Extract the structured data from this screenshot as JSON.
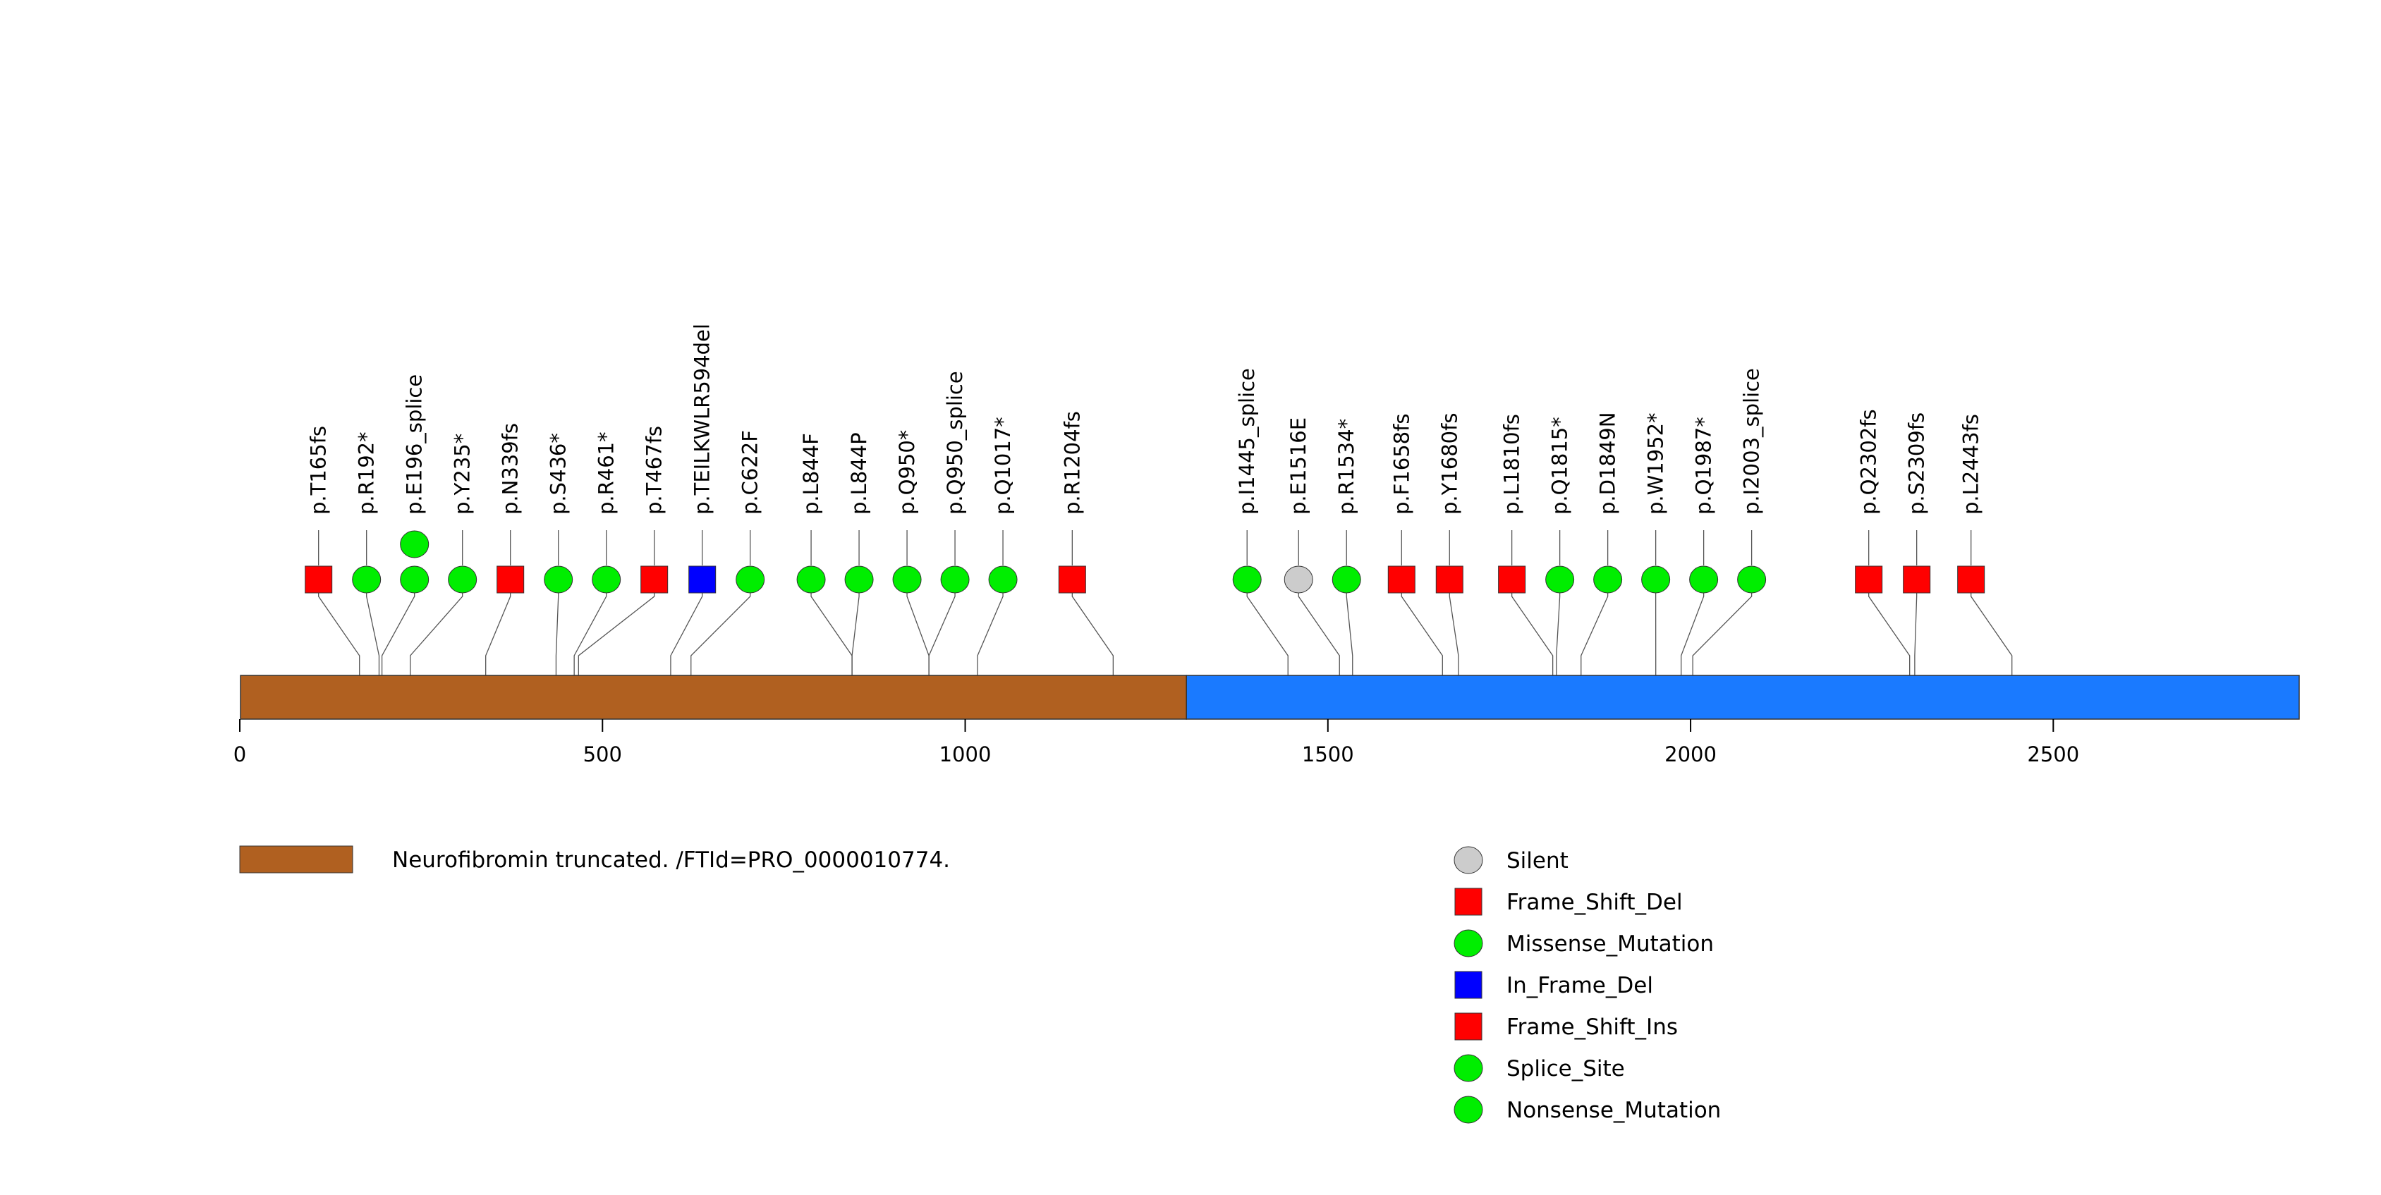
{
  "chart_data": {
    "type": "lollipop",
    "title": "",
    "xlabel": "",
    "ylabel": "",
    "protein_length": 2839,
    "xlim": [
      0,
      2839
    ],
    "x_ticks": [
      0,
      500,
      1000,
      1500,
      2000,
      2500
    ],
    "x_tick_labels": [
      "0",
      "500",
      "1000",
      "1500",
      "2000",
      "2500"
    ],
    "domains": [
      {
        "name": "Neurofibromin truncated. /FTId=PRO_0000010774.",
        "start": 1,
        "end": 1305,
        "color": "#b06020"
      },
      {
        "name": "",
        "start": 1305,
        "end": 2839,
        "color": "#1a7aff"
      }
    ],
    "mutations": [
      {
        "label": "p.T165fs",
        "position": 165,
        "type": "Frame_Shift_Del",
        "stack": 1
      },
      {
        "label": "p.R192*",
        "position": 192,
        "type": "Nonsense_Mutation",
        "stack": 1
      },
      {
        "label": "p.E196_splice",
        "position": 196,
        "type": "Splice_Site",
        "stack": 2
      },
      {
        "label": "p.Y235*",
        "position": 235,
        "type": "Nonsense_Mutation",
        "stack": 1
      },
      {
        "label": "p.N339fs",
        "position": 339,
        "type": "Frame_Shift_Del",
        "stack": 1
      },
      {
        "label": "p.S436*",
        "position": 436,
        "type": "Nonsense_Mutation",
        "stack": 1
      },
      {
        "label": "p.R461*",
        "position": 461,
        "type": "Nonsense_Mutation",
        "stack": 1
      },
      {
        "label": "p.T467fs",
        "position": 467,
        "type": "Frame_Shift_Del",
        "stack": 1
      },
      {
        "label": "p.TEILKWLR594del",
        "position": 594,
        "type": "In_Frame_Del",
        "stack": 1
      },
      {
        "label": "p.C622F",
        "position": 622,
        "type": "Missense_Mutation",
        "stack": 1
      },
      {
        "label": "p.L844F",
        "position": 844,
        "type": "Missense_Mutation",
        "stack": 1
      },
      {
        "label": "p.L844P",
        "position": 844,
        "type": "Missense_Mutation",
        "stack": 1
      },
      {
        "label": "p.Q950*",
        "position": 950,
        "type": "Nonsense_Mutation",
        "stack": 1
      },
      {
        "label": "p.Q950_splice",
        "position": 950,
        "type": "Splice_Site",
        "stack": 1
      },
      {
        "label": "p.Q1017*",
        "position": 1017,
        "type": "Nonsense_Mutation",
        "stack": 1
      },
      {
        "label": "p.R1204fs",
        "position": 1204,
        "type": "Frame_Shift_Del",
        "stack": 1
      },
      {
        "label": "p.I1445_splice",
        "position": 1445,
        "type": "Splice_Site",
        "stack": 1
      },
      {
        "label": "p.E1516E",
        "position": 1516,
        "type": "Silent",
        "stack": 1
      },
      {
        "label": "p.R1534*",
        "position": 1534,
        "type": "Nonsense_Mutation",
        "stack": 1
      },
      {
        "label": "p.F1658fs",
        "position": 1658,
        "type": "Frame_Shift_Del",
        "stack": 1
      },
      {
        "label": "p.Y1680fs",
        "position": 1680,
        "type": "Frame_Shift_Del",
        "stack": 1
      },
      {
        "label": "p.L1810fs",
        "position": 1810,
        "type": "Frame_Shift_Del",
        "stack": 1
      },
      {
        "label": "p.Q1815*",
        "position": 1815,
        "type": "Nonsense_Mutation",
        "stack": 1
      },
      {
        "label": "p.D1849N",
        "position": 1849,
        "type": "Missense_Mutation",
        "stack": 1
      },
      {
        "label": "p.W1952*",
        "position": 1952,
        "type": "Nonsense_Mutation",
        "stack": 1
      },
      {
        "label": "p.Q1987*",
        "position": 1987,
        "type": "Nonsense_Mutation",
        "stack": 1
      },
      {
        "label": "p.I2003_splice",
        "position": 2003,
        "type": "Splice_Site",
        "stack": 1
      },
      {
        "label": "p.Q2302fs",
        "position": 2302,
        "type": "Frame_Shift_Del",
        "stack": 1
      },
      {
        "label": "p.S2309fs",
        "position": 2309,
        "type": "Frame_Shift_Del",
        "stack": 1
      },
      {
        "label": "p.L2443fs",
        "position": 2443,
        "type": "Frame_Shift_Del",
        "stack": 1
      }
    ],
    "legend_mutation_types": [
      {
        "name": "Silent",
        "shape": "circle",
        "color": "#cccccc"
      },
      {
        "name": "Frame_Shift_Del",
        "shape": "square",
        "color": "#ff0000"
      },
      {
        "name": "Missense_Mutation",
        "shape": "circle",
        "color": "#00ee00"
      },
      {
        "name": "In_Frame_Del",
        "shape": "square",
        "color": "#0000ff"
      },
      {
        "name": "Frame_Shift_Ins",
        "shape": "square",
        "color": "#ff0000"
      },
      {
        "name": "Splice_Site",
        "shape": "circle",
        "color": "#00ee00"
      },
      {
        "name": "Nonsense_Mutation",
        "shape": "circle",
        "color": "#00ee00"
      }
    ],
    "legend_domains": [
      {
        "name": "Neurofibromin truncated. /FTId=PRO_0000010774.",
        "color": "#b06020"
      }
    ],
    "legend_position": "bottom"
  }
}
